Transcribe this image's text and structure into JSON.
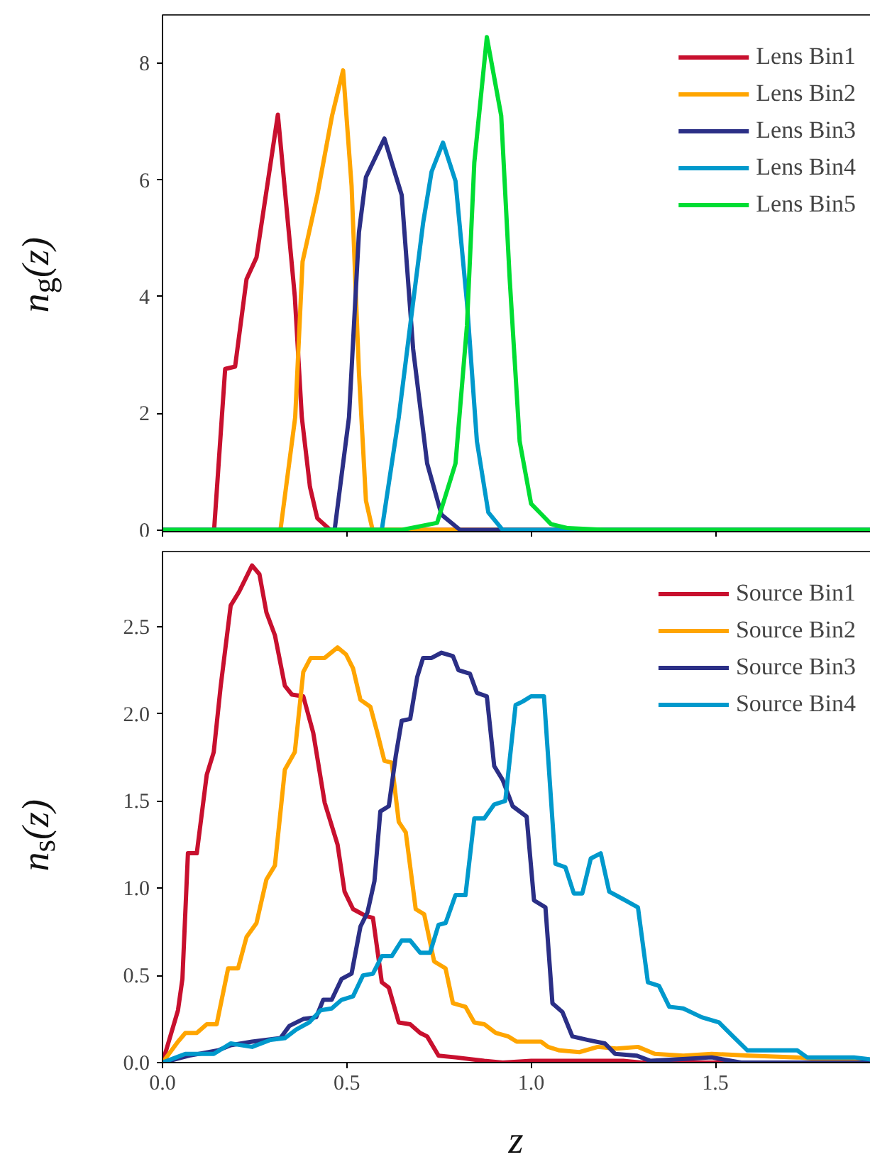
{
  "chart_data": [
    {
      "type": "line",
      "ylabel": "n$_{g}$(z)",
      "xlim": [
        0,
        1.96
      ],
      "ylim": [
        -0.03,
        8.83
      ],
      "yticks": [
        0,
        2,
        4,
        6,
        8
      ],
      "xticks": [
        {
          "value": 0,
          "label": null
        },
        {
          "value": 0.5,
          "label": null
        },
        {
          "value": 1.0,
          "label": null
        },
        {
          "value": 1.5,
          "label": null
        }
      ],
      "tick_labels": "y",
      "grid": false,
      "legend": "top right",
      "marker": "none",
      "line_style": "solid",
      "series": [
        {
          "name": "Lens Bin1",
          "color": "#c8102e",
          "x": [
            0,
            0.14,
            0.17,
            0.197,
            0.228,
            0.255,
            0.313,
            0.359,
            0.378,
            0.4,
            0.42,
            0.455,
            1.96
          ],
          "values": [
            0,
            0,
            2.76,
            2.8,
            4.3,
            4.67,
            7.12,
            4.0,
            1.93,
            0.74,
            0.2,
            0,
            0
          ]
        },
        {
          "name": "Lens Bin2",
          "color": "#ffa500",
          "x": [
            0,
            0.32,
            0.36,
            0.38,
            0.42,
            0.46,
            0.49,
            0.513,
            0.533,
            0.552,
            0.57,
            1.96
          ],
          "values": [
            0,
            0,
            1.93,
            4.6,
            5.74,
            7.1,
            7.88,
            5.9,
            2.7,
            0.5,
            0,
            0
          ]
        },
        {
          "name": "Lens Bin3",
          "color": "#2b2f86",
          "x": [
            0,
            0.467,
            0.506,
            0.533,
            0.552,
            0.602,
            0.649,
            0.68,
            0.718,
            0.757,
            0.807,
            1.96
          ],
          "values": [
            0,
            0,
            1.93,
            5.1,
            6.05,
            6.71,
            5.74,
            3.1,
            1.14,
            0.26,
            0,
            0
          ]
        },
        {
          "name": "Lens Bin4",
          "color": "#0099cc",
          "x": [
            0,
            0.595,
            0.641,
            0.672,
            0.707,
            0.73,
            0.761,
            0.795,
            0.826,
            0.853,
            0.884,
            0.923,
            1.96
          ],
          "values": [
            0,
            0,
            1.93,
            3.5,
            5.26,
            6.14,
            6.64,
            5.98,
            3.9,
            1.52,
            0.3,
            0,
            0
          ]
        },
        {
          "name": "Lens Bin5",
          "color": "#00dd33",
          "x": [
            0,
            0.65,
            0.745,
            0.795,
            0.826,
            0.846,
            0.88,
            0.919,
            0.942,
            0.969,
            1.0,
            1.054,
            1.1,
            1.2,
            1.96
          ],
          "values": [
            0,
            0,
            0.12,
            1.14,
            3.5,
            6.3,
            8.45,
            7.1,
            4.3,
            1.52,
            0.45,
            0.1,
            0.03,
            0,
            0
          ]
        }
      ]
    },
    {
      "type": "line",
      "xlabel": "z",
      "ylabel": "n$_{s}$(z)",
      "xlim": [
        0,
        1.96
      ],
      "ylim": [
        0,
        2.93
      ],
      "xticks": [
        {
          "value": 0,
          "label": "0.0"
        },
        0.5,
        {
          "value": 1.0,
          "label": "1.0"
        },
        1.5
      ],
      "yticks": [
        {
          "value": 0,
          "label": "0.0"
        },
        0.5,
        {
          "value": 1.0,
          "label": "1.0"
        },
        1.5,
        {
          "value": 2.0,
          "label": "2.0"
        },
        2.5
      ],
      "grid": false,
      "legend": "top right",
      "marker": "none",
      "line_style": "solid",
      "series": [
        {
          "name": "Source Bin1",
          "color": "#c8102e",
          "x": [
            0,
            0.042,
            0.054,
            0.069,
            0.093,
            0.12,
            0.139,
            0.158,
            0.185,
            0.208,
            0.243,
            0.263,
            0.282,
            0.305,
            0.332,
            0.351,
            0.382,
            0.409,
            0.44,
            0.475,
            0.494,
            0.517,
            0.552,
            0.571,
            0.595,
            0.614,
            0.641,
            0.672,
            0.699,
            0.718,
            0.749,
            0.795,
            0.873,
            0.923,
            1.0,
            1.25,
            1.3,
            1.96
          ],
          "values": [
            0,
            0.3,
            0.48,
            1.2,
            1.2,
            1.65,
            1.78,
            2.16,
            2.62,
            2.7,
            2.85,
            2.8,
            2.58,
            2.45,
            2.16,
            2.11,
            2.1,
            1.89,
            1.49,
            1.25,
            0.98,
            0.88,
            0.84,
            0.83,
            0.46,
            0.43,
            0.23,
            0.22,
            0.17,
            0.15,
            0.04,
            0.03,
            0.01,
            0,
            0.01,
            0.01,
            0,
            0
          ]
        },
        {
          "name": "Source Bin2",
          "color": "#ffa500",
          "x": [
            0,
            0.042,
            0.062,
            0.093,
            0.12,
            0.147,
            0.178,
            0.205,
            0.228,
            0.255,
            0.282,
            0.305,
            0.332,
            0.359,
            0.382,
            0.402,
            0.44,
            0.475,
            0.498,
            0.517,
            0.537,
            0.564,
            0.583,
            0.602,
            0.622,
            0.641,
            0.66,
            0.687,
            0.71,
            0.737,
            0.768,
            0.788,
            0.822,
            0.846,
            0.873,
            0.904,
            0.938,
            0.961,
            1.027,
            1.046,
            1.077,
            1.131,
            1.181,
            1.232,
            1.29,
            1.336,
            1.413,
            1.49,
            1.595,
            1.722,
            1.85,
            1.96
          ],
          "values": [
            0,
            0.12,
            0.17,
            0.17,
            0.22,
            0.22,
            0.54,
            0.54,
            0.72,
            0.8,
            1.05,
            1.13,
            1.68,
            1.78,
            2.24,
            2.32,
            2.32,
            2.38,
            2.34,
            2.26,
            2.08,
            2.04,
            1.89,
            1.73,
            1.72,
            1.38,
            1.32,
            0.88,
            0.85,
            0.58,
            0.54,
            0.34,
            0.32,
            0.23,
            0.22,
            0.17,
            0.15,
            0.12,
            0.12,
            0.09,
            0.07,
            0.06,
            0.09,
            0.08,
            0.09,
            0.05,
            0.04,
            0.05,
            0.04,
            0.03,
            0.01,
            0
          ]
        },
        {
          "name": "Source Bin3",
          "color": "#2b2f86",
          "x": [
            0,
            0.073,
            0.151,
            0.185,
            0.243,
            0.32,
            0.344,
            0.382,
            0.417,
            0.436,
            0.459,
            0.486,
            0.513,
            0.537,
            0.556,
            0.575,
            0.591,
            0.614,
            0.633,
            0.649,
            0.672,
            0.691,
            0.707,
            0.73,
            0.757,
            0.788,
            0.803,
            0.834,
            0.853,
            0.88,
            0.9,
            0.923,
            0.95,
            0.988,
            1.008,
            1.039,
            1.058,
            1.085,
            1.112,
            1.154,
            1.2,
            1.228,
            1.286,
            1.324,
            1.49,
            1.57,
            1.96
          ],
          "values": [
            0,
            0.04,
            0.07,
            0.1,
            0.12,
            0.14,
            0.21,
            0.25,
            0.26,
            0.36,
            0.36,
            0.48,
            0.51,
            0.78,
            0.86,
            1.04,
            1.44,
            1.47,
            1.76,
            1.96,
            1.97,
            2.21,
            2.32,
            2.32,
            2.35,
            2.33,
            2.25,
            2.23,
            2.12,
            2.1,
            1.7,
            1.62,
            1.47,
            1.41,
            0.93,
            0.89,
            0.34,
            0.29,
            0.15,
            0.13,
            0.11,
            0.05,
            0.04,
            0.01,
            0.03,
            0,
            0
          ]
        },
        {
          "name": "Source Bin4",
          "color": "#0099cc",
          "x": [
            0,
            0.062,
            0.139,
            0.185,
            0.243,
            0.293,
            0.332,
            0.363,
            0.398,
            0.429,
            0.459,
            0.486,
            0.517,
            0.544,
            0.571,
            0.595,
            0.622,
            0.649,
            0.672,
            0.699,
            0.726,
            0.749,
            0.768,
            0.795,
            0.822,
            0.846,
            0.873,
            0.9,
            0.93,
            0.958,
            0.977,
            1.0,
            1.035,
            1.066,
            1.093,
            1.116,
            1.139,
            1.162,
            1.189,
            1.212,
            1.247,
            1.29,
            1.317,
            1.347,
            1.375,
            1.413,
            1.463,
            1.51,
            1.548,
            1.587,
            1.722,
            1.749,
            1.876,
            1.954
          ],
          "values": [
            0,
            0.05,
            0.05,
            0.11,
            0.09,
            0.13,
            0.14,
            0.19,
            0.23,
            0.3,
            0.31,
            0.36,
            0.38,
            0.5,
            0.51,
            0.61,
            0.61,
            0.7,
            0.7,
            0.63,
            0.63,
            0.79,
            0.8,
            0.96,
            0.96,
            1.4,
            1.4,
            1.48,
            1.5,
            2.05,
            2.07,
            2.1,
            2.1,
            1.14,
            1.12,
            0.97,
            0.97,
            1.17,
            1.2,
            0.98,
            0.94,
            0.89,
            0.46,
            0.44,
            0.32,
            0.31,
            0.26,
            0.23,
            0.15,
            0.07,
            0.07,
            0.03,
            0.03,
            0.01
          ]
        }
      ]
    }
  ]
}
